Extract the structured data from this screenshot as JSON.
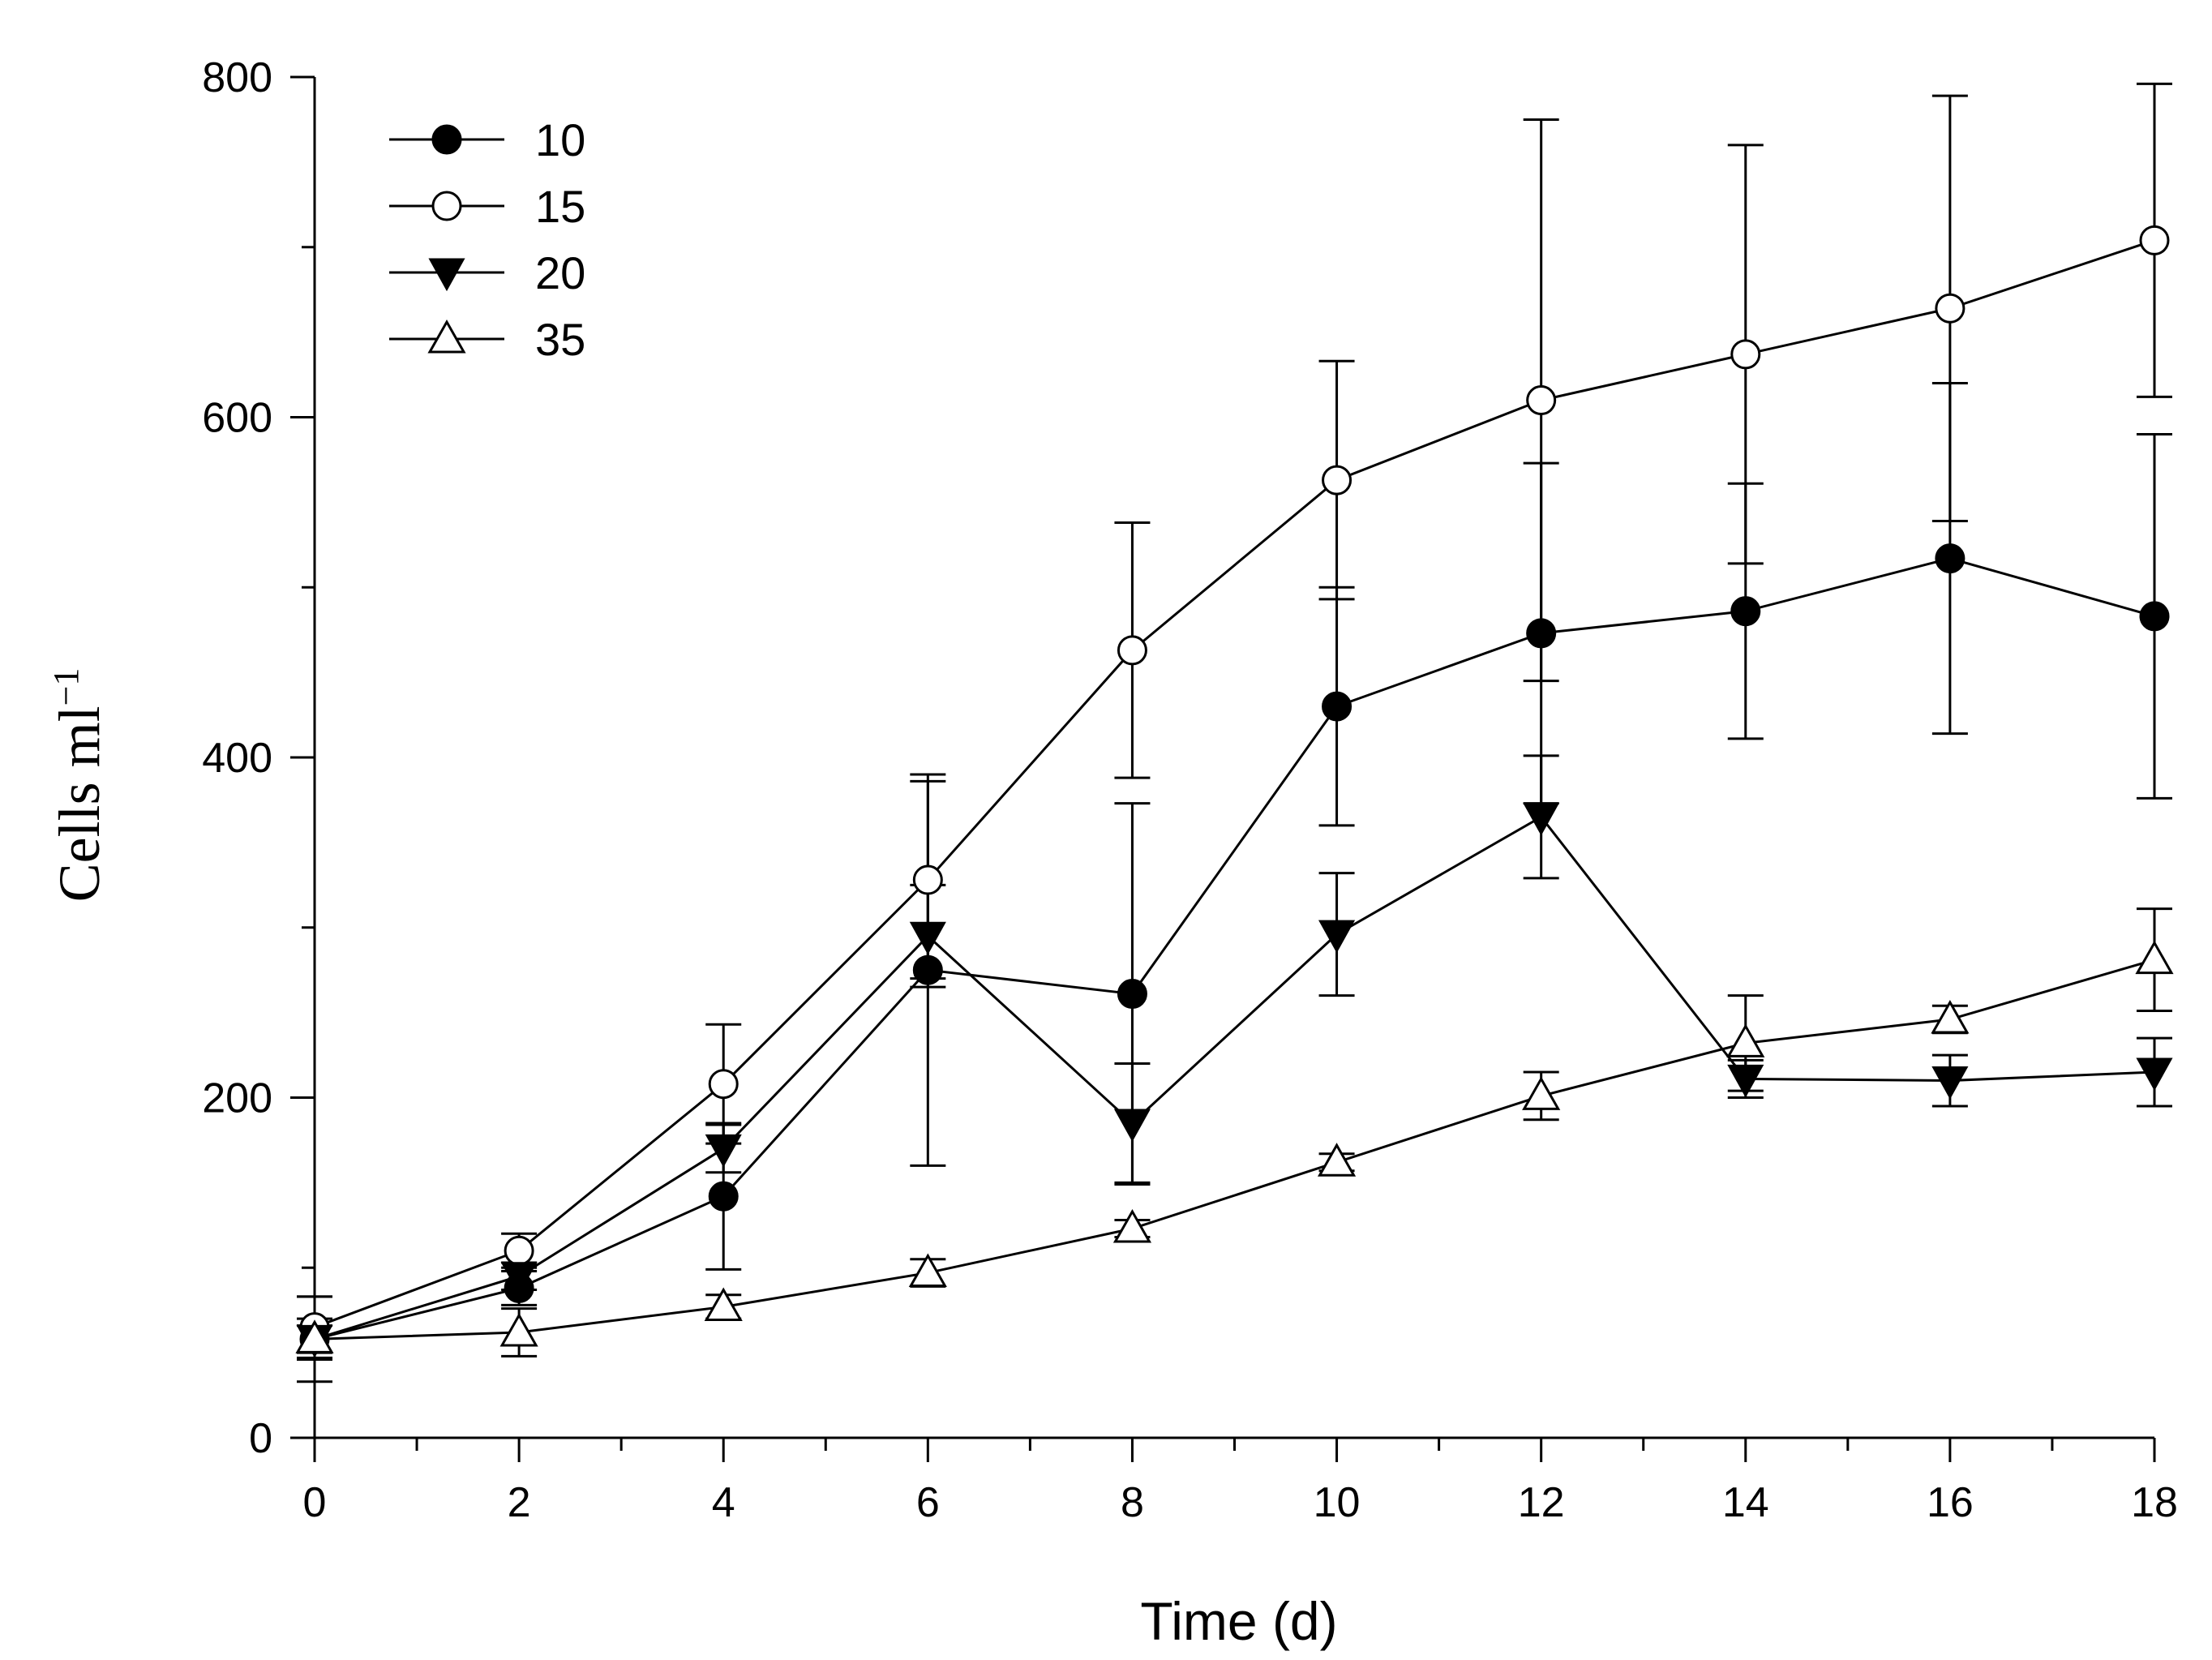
{
  "chart_data": {
    "type": "line",
    "title": "",
    "xlabel": "Time (d)",
    "ylabel_main": "Cells ml",
    "ylabel_sup": "−1",
    "x": [
      0,
      2,
      4,
      6,
      8,
      10,
      12,
      14,
      16,
      18
    ],
    "x_ticks": [
      "0",
      "2",
      "4",
      "6",
      "8",
      "10",
      "12",
      "14",
      "16",
      "18"
    ],
    "y_ticks": [
      "0",
      "200",
      "400",
      "600",
      "800"
    ],
    "xlim": [
      0,
      18
    ],
    "ylim": [
      0,
      800
    ],
    "legend_position": "top-left",
    "series": [
      {
        "name": "10",
        "marker": "filled-circle",
        "values": [
          58,
          88,
          142,
          275,
          261,
          430,
          473,
          486,
          517,
          483
        ],
        "errors": [
          25,
          10,
          43,
          115,
          112,
          70,
          100,
          75,
          103,
          107
        ]
      },
      {
        "name": "15",
        "marker": "open-circle",
        "values": [
          65,
          110,
          208,
          328,
          463,
          563,
          610,
          637,
          664,
          704
        ],
        "errors": [
          18,
          10,
          35,
          58,
          75,
          70,
          165,
          123,
          125,
          92
        ]
      },
      {
        "name": "20",
        "marker": "filled-triangle-down",
        "values": [
          58,
          95,
          170,
          295,
          185,
          296,
          365,
          211,
          210,
          215
        ],
        "errors": [
          12,
          8,
          14,
          30,
          35,
          36,
          36,
          11,
          15,
          20
        ]
      },
      {
        "name": "35",
        "marker": "open-triangle-up",
        "values": [
          58,
          62,
          77,
          97,
          123,
          162,
          201,
          232,
          246,
          281
        ],
        "errors": [
          8,
          14,
          7,
          8,
          5,
          5,
          14,
          28,
          8,
          30
        ]
      }
    ]
  }
}
